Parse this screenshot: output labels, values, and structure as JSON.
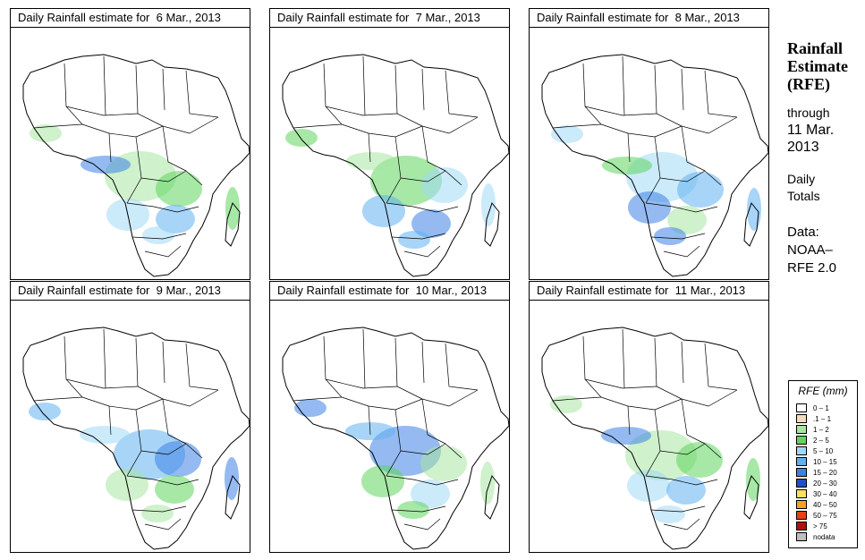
{
  "panels": [
    {
      "title": "Daily Rainfall estimate for  6 Mar., 2013"
    },
    {
      "title": "Daily Rainfall estimate for  7 Mar., 2013"
    },
    {
      "title": "Daily Rainfall estimate for  8 Mar., 2013"
    },
    {
      "title": "Daily Rainfall estimate for  9 Mar., 2013"
    },
    {
      "title": "Daily Rainfall estimate for  10 Mar., 2013"
    },
    {
      "title": "Daily Rainfall estimate for  11 Mar., 2013"
    }
  ],
  "sidebar": {
    "title_line1": "Rainfall",
    "title_line2": "Estimate",
    "title_line3": "(RFE)",
    "through_label": "through",
    "date_line1": "11 Mar.",
    "date_line2": "2013",
    "daily_label": "Daily",
    "totals_label": "Totals",
    "data_label": "Data:",
    "source_line1": "NOAA–",
    "source_line2": "RFE 2.0"
  },
  "legend": {
    "title": "RFE (mm)",
    "items": [
      {
        "label": "0 – 1",
        "color": "#ffffff"
      },
      {
        "label": ".1 – 1",
        "color": "#f0dcc0"
      },
      {
        "label": "1 – 2",
        "color": "#a8e6a0"
      },
      {
        "label": "2 – 5",
        "color": "#5fd55f"
      },
      {
        "label": "5 – 10",
        "color": "#a0d8f5"
      },
      {
        "label": "10 – 15",
        "color": "#60b0f0"
      },
      {
        "label": "15 – 20",
        "color": "#3c82e6"
      },
      {
        "label": "20 – 30",
        "color": "#1e50c8"
      },
      {
        "label": "30 – 40",
        "color": "#f8e060"
      },
      {
        "label": "40 – 50",
        "color": "#f8a020"
      },
      {
        "label": "50 – 75",
        "color": "#e84010"
      },
      {
        "label": "> 75",
        "color": "#b01010"
      },
      {
        "label": "nodata",
        "color": "#bebebe"
      }
    ]
  }
}
